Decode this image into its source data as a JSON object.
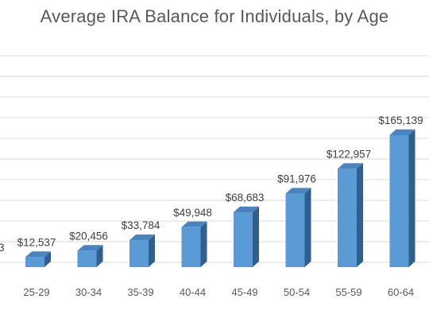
{
  "chart_data": {
    "type": "bar",
    "title": "Average IRA Balance for Individuals, by Age",
    "xlabel": "",
    "ylabel": "",
    "ylim": [
      0,
      180000
    ],
    "grid": true,
    "legend": "none",
    "bar_color": "#5b9bd5",
    "bar_side_color": "#2f5f8f",
    "bar_top_color": "#4a83bd",
    "categories": [
      "25-29",
      "30-34",
      "35-39",
      "40-44",
      "45-49",
      "50-54",
      "55-59",
      "60-64"
    ],
    "values": [
      12537,
      20456,
      33784,
      49948,
      68683,
      91976,
      122957,
      165139
    ],
    "data_labels": [
      "$12,537",
      "$20,456",
      "$33,784",
      "$49,948",
      "$68,683",
      "$91,976",
      "$122,957",
      "$165,139"
    ]
  }
}
